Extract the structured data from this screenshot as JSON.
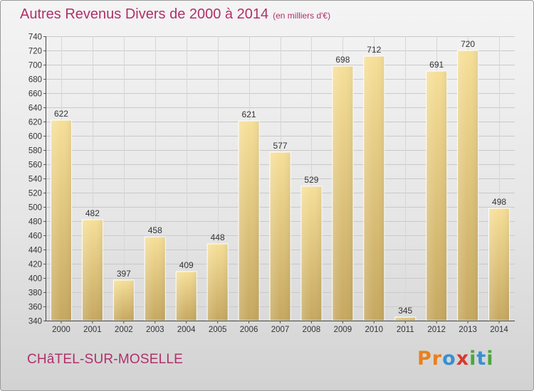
{
  "title": "Autres Revenus Divers de 2000 à 2014",
  "unit": "(en milliers d'€)",
  "location": "CHâTEL-SUR-MOSELLE",
  "brand": {
    "name": "Proxiti",
    "letters": [
      "P",
      "r",
      "o",
      "x",
      "i",
      "t",
      "i"
    ],
    "colors": [
      "#e8801f",
      "#e8801f",
      "#3a8fd0",
      "#d63a2f",
      "#4aa83c",
      "#3a8fd0",
      "#4aa83c"
    ]
  },
  "chart_data": {
    "type": "bar",
    "title": "Autres Revenus Divers de 2000 à 2014",
    "subtitle": "(en milliers d'€)",
    "categories": [
      "2000",
      "2001",
      "2002",
      "2003",
      "2004",
      "2005",
      "2006",
      "2007",
      "2008",
      "2009",
      "2010",
      "2011",
      "2012",
      "2013",
      "2014"
    ],
    "values": [
      622,
      482,
      397,
      458,
      409,
      448,
      621,
      577,
      529,
      698,
      712,
      345,
      691,
      720,
      498
    ],
    "ylim": [
      340,
      740
    ],
    "yticks": [
      340,
      360,
      380,
      400,
      420,
      440,
      460,
      480,
      500,
      520,
      540,
      560,
      580,
      600,
      620,
      640,
      660,
      680,
      700,
      720,
      740
    ],
    "grid": true,
    "bar_color": "#e9cf88"
  }
}
